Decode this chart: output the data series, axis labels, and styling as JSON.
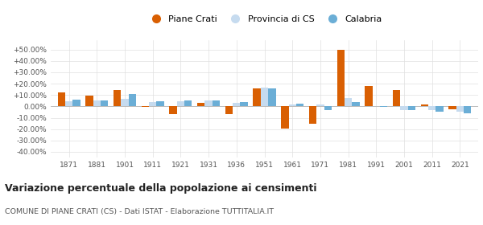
{
  "years": [
    1871,
    1881,
    1901,
    1911,
    1921,
    1931,
    1936,
    1951,
    1961,
    1971,
    1981,
    1991,
    2001,
    2011,
    2021
  ],
  "piane_crati": [
    12.0,
    9.5,
    14.5,
    -0.3,
    -7.0,
    3.0,
    -6.5,
    16.0,
    -19.5,
    -15.0,
    49.5,
    18.0,
    14.5,
    1.5,
    -2.5
  ],
  "provincia_cs": [
    4.5,
    5.0,
    6.5,
    4.0,
    4.5,
    5.0,
    3.0,
    16.5,
    1.5,
    1.5,
    7.0,
    0.5,
    -3.0,
    -3.5,
    -5.0
  ],
  "calabria": [
    6.0,
    5.5,
    11.0,
    4.5,
    5.5,
    5.5,
    3.5,
    15.5,
    2.5,
    -3.0,
    3.5,
    -0.5,
    -3.5,
    -4.5,
    -6.0
  ],
  "piane_color": "#d95f02",
  "provincia_color": "#c6dbef",
  "calabria_color": "#6baed6",
  "background_color": "#ffffff",
  "grid_color": "#e0e0e0",
  "title": "Variazione percentuale della popolazione ai censimenti",
  "subtitle": "COMUNE DI PIANE CRATI (CS) - Dati ISTAT - Elaborazione TUTTITALIA.IT",
  "ylim": [
    -45,
    58
  ],
  "yticks": [
    -40,
    -30,
    -20,
    -10,
    0,
    10,
    20,
    30,
    40,
    50
  ],
  "bar_width": 0.27
}
